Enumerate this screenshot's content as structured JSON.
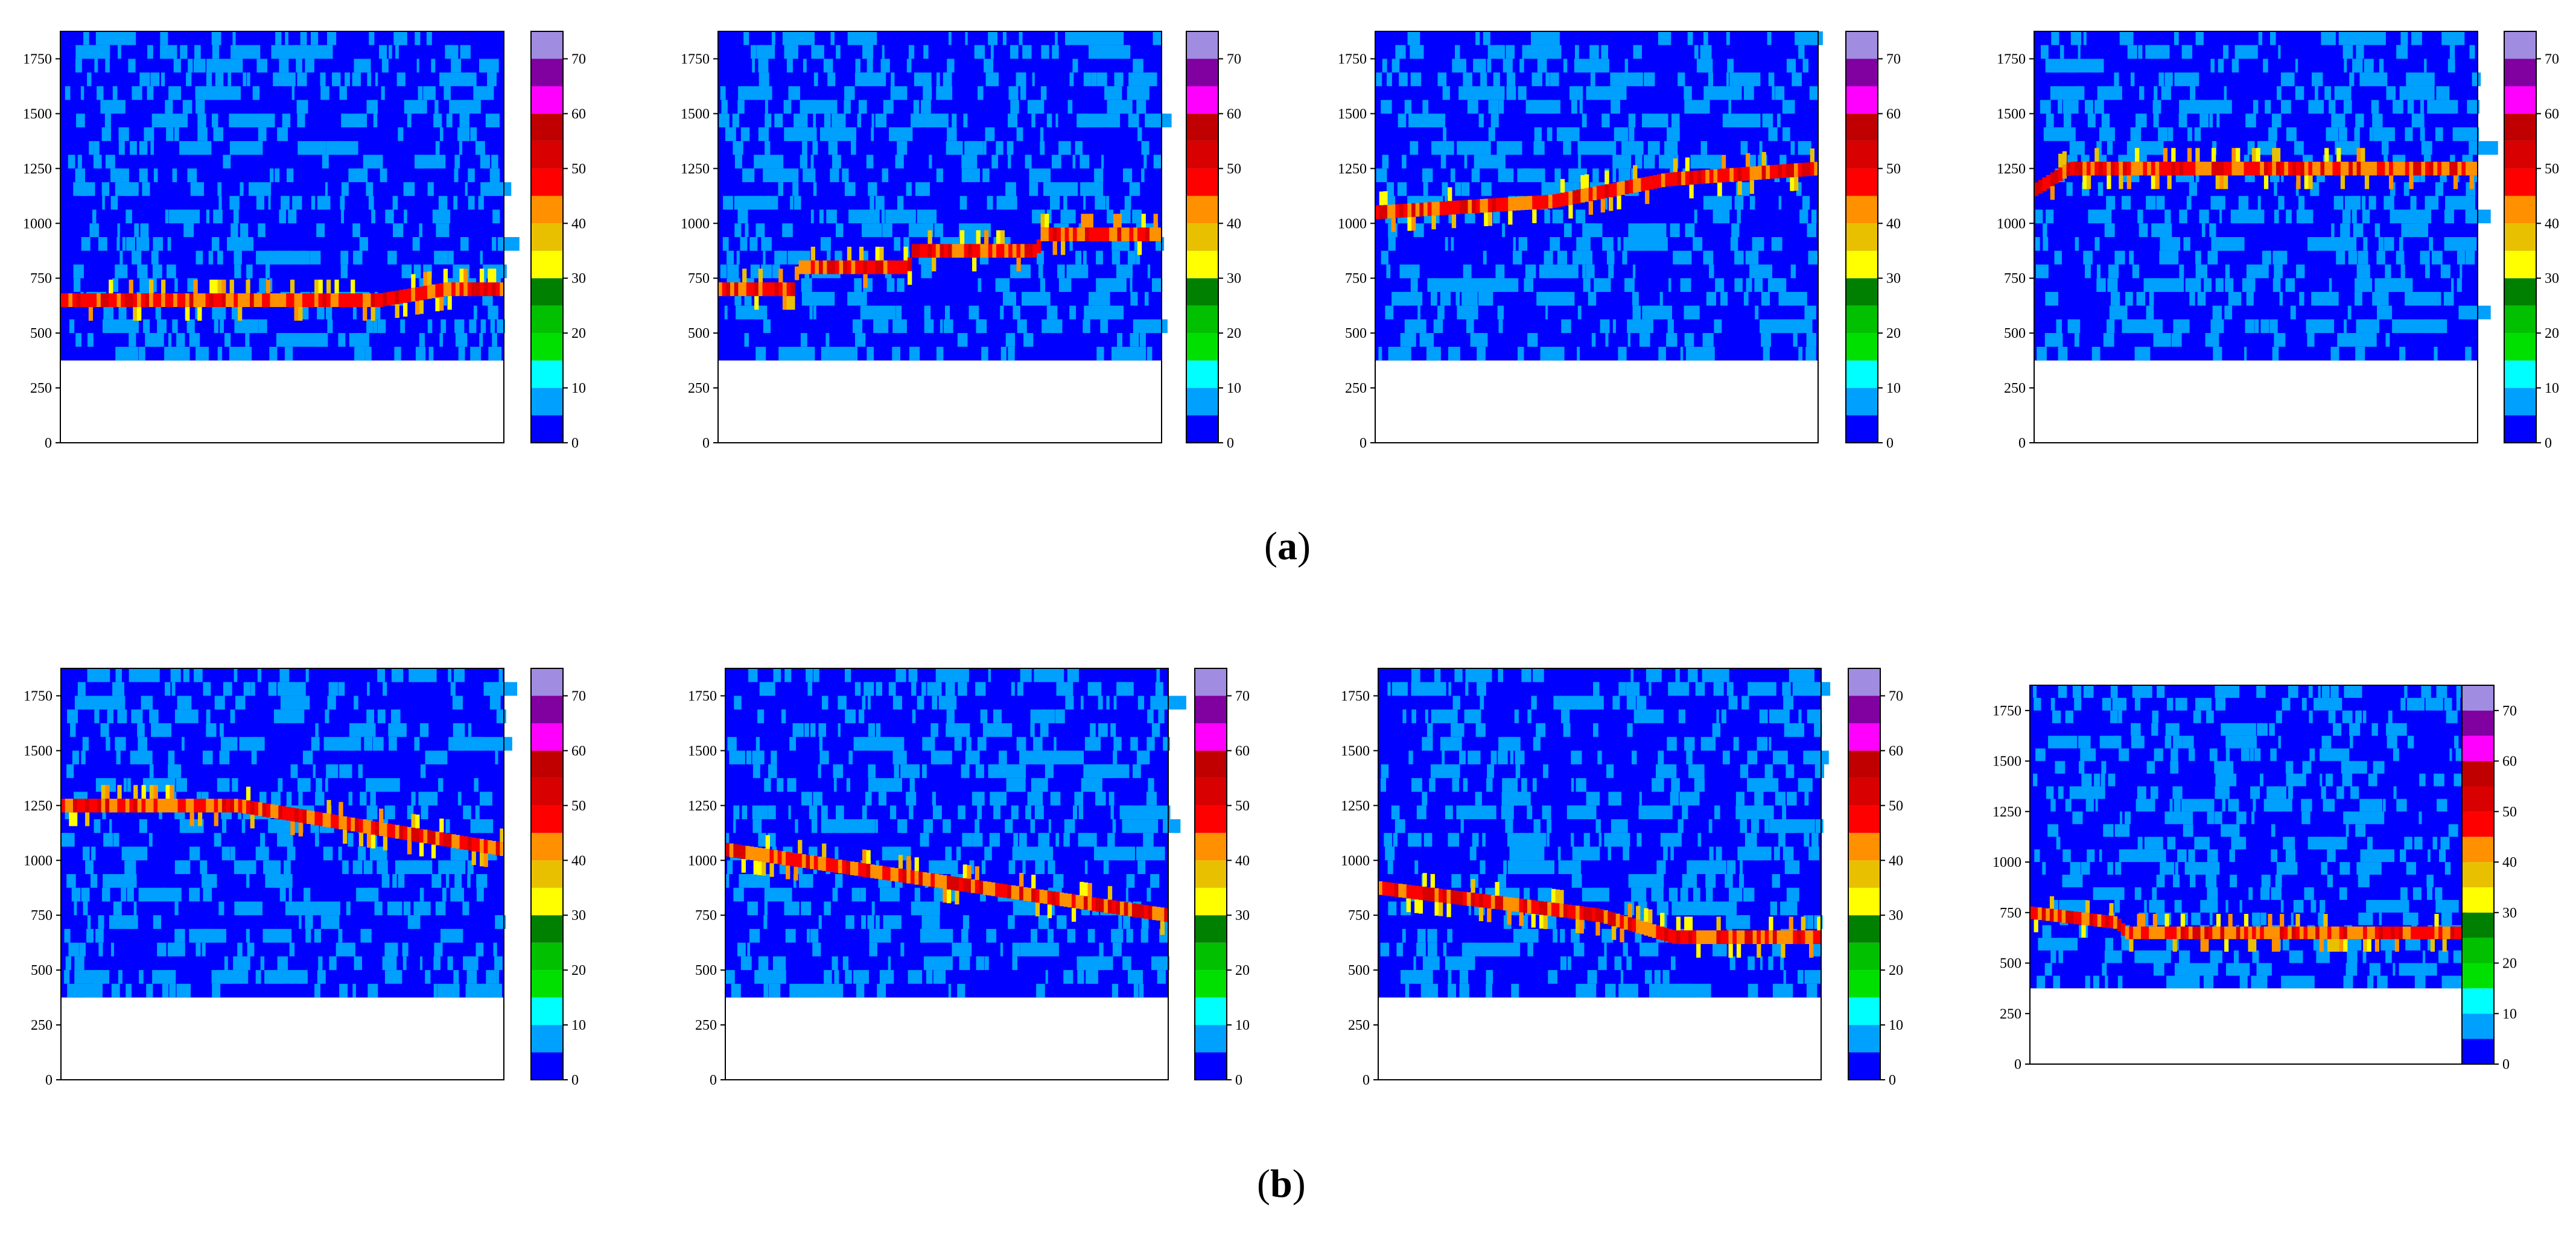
{
  "figure": {
    "row_captions": [
      {
        "open": "(",
        "letter": "a",
        "close": ")"
      },
      {
        "open": "(",
        "letter": "b",
        "close": ")"
      }
    ],
    "colors": {
      "background": "#0000ff",
      "frame": "#000000",
      "empty": "#ffffff"
    }
  },
  "chart_data": {
    "type": "heatmap",
    "shared": {
      "y_ticks": [
        0,
        250,
        500,
        750,
        1000,
        1250,
        1500,
        1750
      ],
      "ylim": [
        0,
        1875
      ],
      "data_ymin": 375,
      "colorbar": {
        "ticks": [
          0,
          10,
          20,
          30,
          40,
          50,
          60,
          70
        ],
        "range": [
          0,
          75
        ],
        "bins": [
          {
            "from": 0,
            "to": 5,
            "color": "#0000ff"
          },
          {
            "from": 5,
            "to": 10,
            "color": "#00a0ff"
          },
          {
            "from": 10,
            "to": 15,
            "color": "#00ffff"
          },
          {
            "from": 15,
            "to": 20,
            "color": "#00e000"
          },
          {
            "from": 20,
            "to": 25,
            "color": "#00c000"
          },
          {
            "from": 25,
            "to": 30,
            "color": "#008000"
          },
          {
            "from": 30,
            "to": 35,
            "color": "#ffff00"
          },
          {
            "from": 35,
            "to": 40,
            "color": "#e8c000"
          },
          {
            "from": 40,
            "to": 45,
            "color": "#ff9000"
          },
          {
            "from": 45,
            "to": 50,
            "color": "#ff0000"
          },
          {
            "from": 50,
            "to": 55,
            "color": "#d80000"
          },
          {
            "from": 55,
            "to": 60,
            "color": "#c00000"
          },
          {
            "from": 60,
            "to": 65,
            "color": "#ff00ff"
          },
          {
            "from": 65,
            "to": 70,
            "color": "#8000a0"
          },
          {
            "from": 70,
            "to": 75,
            "color": "#a08ce0"
          }
        ]
      }
    },
    "panels": [
      {
        "id": "a1",
        "row": "a",
        "ymin": 375,
        "track": [
          [
            0,
            650
          ],
          [
            0.72,
            650
          ],
          [
            0.87,
            700
          ],
          [
            1.0,
            700
          ]
        ]
      },
      {
        "id": "a2",
        "row": "a",
        "ymin": 375,
        "track": [
          [
            0,
            700
          ],
          [
            0.17,
            700
          ],
          [
            0.18,
            800
          ],
          [
            0.43,
            800
          ],
          [
            0.44,
            875
          ],
          [
            0.72,
            875
          ],
          [
            0.73,
            950
          ],
          [
            1.0,
            950
          ]
        ]
      },
      {
        "id": "a3",
        "row": "a",
        "ymin": 375,
        "track": [
          [
            0,
            1050
          ],
          [
            0.4,
            1100
          ],
          [
            0.66,
            1200
          ],
          [
            1.0,
            1250
          ]
        ]
      },
      {
        "id": "a4",
        "row": "a",
        "ymin": 375,
        "track": [
          [
            0,
            1150
          ],
          [
            0.08,
            1250
          ],
          [
            1.0,
            1250
          ]
        ]
      },
      {
        "id": "b1",
        "row": "b",
        "ymin": 375,
        "track": [
          [
            0,
            1250
          ],
          [
            0.4,
            1250
          ],
          [
            0.7,
            1150
          ],
          [
            1.0,
            1050
          ]
        ]
      },
      {
        "id": "b2",
        "row": "b",
        "ymin": 375,
        "track": [
          [
            0,
            1050
          ],
          [
            0.5,
            900
          ],
          [
            1.0,
            750
          ]
        ]
      },
      {
        "id": "b3",
        "row": "b",
        "ymin": 375,
        "track": [
          [
            0,
            875
          ],
          [
            0.5,
            750
          ],
          [
            0.67,
            650
          ],
          [
            1.0,
            650
          ]
        ]
      },
      {
        "id": "b4",
        "row": "b",
        "ymin": 375,
        "track": [
          [
            0,
            750
          ],
          [
            0.2,
            700
          ],
          [
            0.22,
            650
          ],
          [
            1.0,
            650
          ]
        ]
      }
    ]
  }
}
